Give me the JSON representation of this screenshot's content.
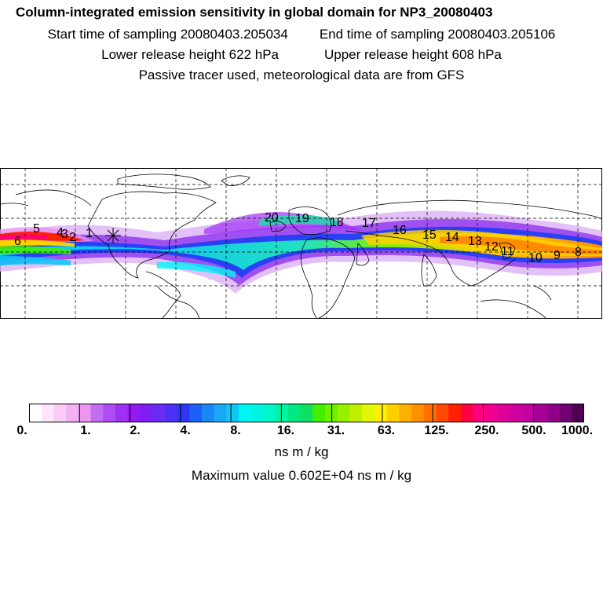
{
  "header": {
    "title": "Column-integrated emission sensitivity in global domain for NP3_20080403",
    "start_time": "Start time of sampling 20080403.205034",
    "end_time": "End time of sampling 20080403.205106",
    "lower_height": "Lower release height  622 hPa",
    "upper_height": "Upper release height  608 hPa",
    "note": "Passive tracer used, meteorological data are from GFS"
  },
  "map": {
    "day_markers": [
      "1",
      "2",
      "3",
      "4",
      "5",
      "6",
      "8",
      "9",
      "10",
      "11",
      "12",
      "13",
      "14",
      "15",
      "16",
      "17",
      "18",
      "19",
      "20"
    ]
  },
  "colorbar": {
    "colors": [
      "#ffffff",
      "#fde6fb",
      "#f9ccf6",
      "#f3b0f3",
      "#ec96f0",
      "#c06cf3",
      "#b04cf3",
      "#a030f3",
      "#9418f0",
      "#7d1cf5",
      "#6a2cf5",
      "#4a30f5",
      "#2c38f5",
      "#1c60f5",
      "#1888f5",
      "#18a8f5",
      "#10c8f5",
      "#00f5f5",
      "#00f5e0",
      "#00f5c8",
      "#00f5a0",
      "#00e880",
      "#10e060",
      "#40f000",
      "#70f000",
      "#98f000",
      "#c0f000",
      "#e0f800",
      "#fff000",
      "#ffd000",
      "#ffb000",
      "#ff9000",
      "#ff7000",
      "#ff4800",
      "#ff2000",
      "#ff0040",
      "#ff0080",
      "#f00090",
      "#e00098",
      "#d000a0",
      "#c000a0",
      "#a80098",
      "#900088",
      "#700070",
      "#500050"
    ],
    "tick_labels": [
      "0.",
      "1.",
      "2.",
      "4.",
      "8.",
      "16.",
      "31.",
      "63.",
      "125.",
      "250.",
      "500.",
      "1000."
    ],
    "units": "ns m / kg",
    "max_value": "Maximum value  0.602E+04 ns m / kg"
  }
}
